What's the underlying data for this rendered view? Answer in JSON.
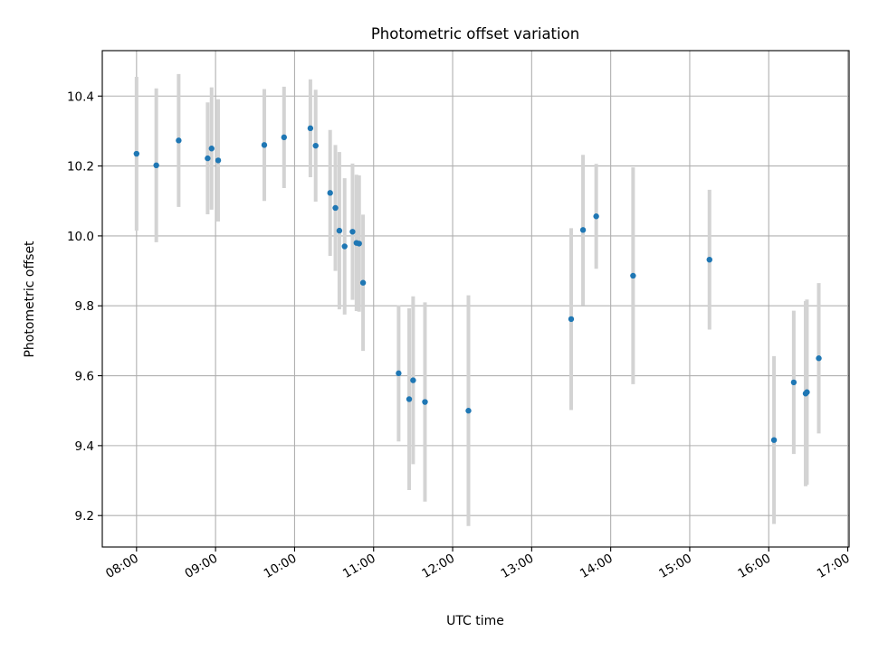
{
  "chart_data": {
    "type": "scatter",
    "title": "Photometric offset variation",
    "xlabel": "UTC time",
    "ylabel": "Photometric offset",
    "x_unit": "UTC time (HH:MM)",
    "xlim": [
      "07:34",
      "17:01"
    ],
    "ylim": [
      9.11,
      10.53
    ],
    "xticks": [
      "08:00",
      "09:00",
      "10:00",
      "11:00",
      "12:00",
      "13:00",
      "14:00",
      "15:00",
      "16:00",
      "17:00"
    ],
    "yticks": [
      "9.2",
      "9.4",
      "9.6",
      "9.8",
      "10.0",
      "10.2",
      "10.4"
    ],
    "grid": true,
    "series": [
      {
        "marker_color": "#1f77b4",
        "errorbar_color": "#d3d3d3",
        "points": [
          {
            "x": "08:00",
            "y": 10.235,
            "err": 0.22
          },
          {
            "x": "08:15",
            "y": 10.202,
            "err": 0.22
          },
          {
            "x": "08:32",
            "y": 10.273,
            "err": 0.19
          },
          {
            "x": "08:54",
            "y": 10.222,
            "err": 0.16
          },
          {
            "x": "08:57",
            "y": 10.25,
            "err": 0.175
          },
          {
            "x": "09:02",
            "y": 10.216,
            "err": 0.175
          },
          {
            "x": "09:37",
            "y": 10.26,
            "err": 0.16
          },
          {
            "x": "09:52",
            "y": 10.282,
            "err": 0.145
          },
          {
            "x": "10:12",
            "y": 10.308,
            "err": 0.14
          },
          {
            "x": "10:16",
            "y": 10.258,
            "err": 0.16
          },
          {
            "x": "10:27",
            "y": 10.123,
            "err": 0.18
          },
          {
            "x": "10:31",
            "y": 10.08,
            "err": 0.18
          },
          {
            "x": "10:34",
            "y": 10.015,
            "err": 0.225
          },
          {
            "x": "10:38",
            "y": 9.97,
            "err": 0.195
          },
          {
            "x": "10:44",
            "y": 10.012,
            "err": 0.195
          },
          {
            "x": "10:47",
            "y": 9.98,
            "err": 0.195
          },
          {
            "x": "10:49",
            "y": 9.978,
            "err": 0.195
          },
          {
            "x": "10:52",
            "y": 9.866,
            "err": 0.195
          },
          {
            "x": "11:19",
            "y": 9.607,
            "err": 0.195
          },
          {
            "x": "11:27",
            "y": 9.533,
            "err": 0.26
          },
          {
            "x": "11:30",
            "y": 9.587,
            "err": 0.24
          },
          {
            "x": "11:39",
            "y": 9.525,
            "err": 0.285
          },
          {
            "x": "12:12",
            "y": 9.5,
            "err": 0.33
          },
          {
            "x": "13:30",
            "y": 9.762,
            "err": 0.26
          },
          {
            "x": "13:39",
            "y": 10.017,
            "err": 0.215
          },
          {
            "x": "13:49",
            "y": 10.056,
            "err": 0.15
          },
          {
            "x": "14:17",
            "y": 9.886,
            "err": 0.31
          },
          {
            "x": "15:15",
            "y": 9.932,
            "err": 0.2
          },
          {
            "x": "16:04",
            "y": 9.416,
            "err": 0.24
          },
          {
            "x": "16:19",
            "y": 9.581,
            "err": 0.205
          },
          {
            "x": "16:28",
            "y": 9.549,
            "err": 0.265
          },
          {
            "x": "16:29",
            "y": 9.553,
            "err": 0.265
          },
          {
            "x": "16:38",
            "y": 9.65,
            "err": 0.215
          }
        ]
      }
    ]
  }
}
